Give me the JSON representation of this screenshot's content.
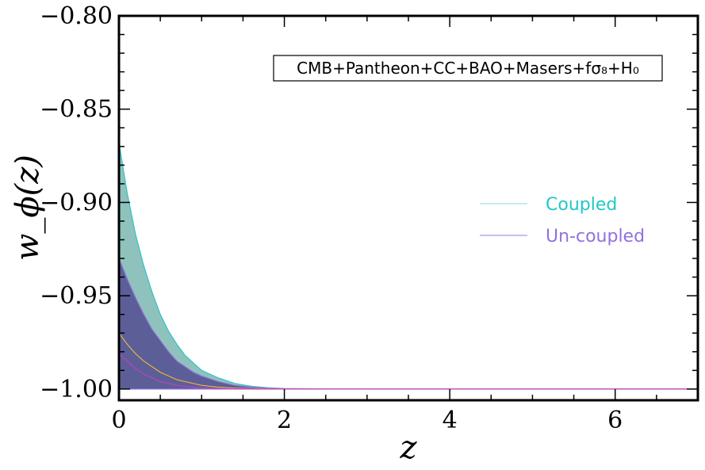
{
  "chart_data": {
    "type": "area",
    "xlabel": "z",
    "ylabel": "w_ϕ(z)",
    "xlim": [
      0,
      7
    ],
    "ylim": [
      -1.006,
      -0.8
    ],
    "x_ticks": [
      0,
      2,
      4,
      6
    ],
    "x_tick_labels": [
      "0",
      "2",
      "4",
      "6"
    ],
    "y_ticks": [
      -1.0,
      -0.95,
      -0.9,
      -0.85,
      -0.8
    ],
    "y_tick_labels": [
      "−1.00",
      "−0.95",
      "−0.90",
      "−0.85",
      "−0.80"
    ],
    "annotation": "CMB+Pantheon+CC+BAO+Masers+fσ₈+H₀",
    "legend_position": "center-right",
    "series": [
      {
        "name": "Coupled",
        "color": "#2ec4c4",
        "fill": "#5fa8a0",
        "x": [
          0,
          0.1,
          0.2,
          0.3,
          0.4,
          0.5,
          0.6,
          0.7,
          0.8,
          0.9,
          1.0,
          1.2,
          1.4,
          1.6,
          1.8,
          2.0,
          2.5,
          3.0,
          4.0,
          5.0,
          6.0,
          7.0
        ],
        "upper": [
          -0.868,
          -0.895,
          -0.917,
          -0.934,
          -0.948,
          -0.96,
          -0.969,
          -0.976,
          -0.982,
          -0.986,
          -0.99,
          -0.994,
          -0.997,
          -0.9985,
          -0.9993,
          -0.9997,
          -0.9999,
          -1.0,
          -1.0,
          -1.0,
          -1.0,
          -1.0
        ],
        "mean": [
          -0.97,
          -0.976,
          -0.981,
          -0.985,
          -0.988,
          -0.991,
          -0.993,
          -0.995,
          -0.996,
          -0.997,
          -0.998,
          -0.999,
          -0.9995,
          -0.9998,
          -0.9999,
          -1.0,
          -1.0,
          -1.0,
          -1.0,
          -1.0,
          -1.0,
          -1.0
        ],
        "lower": [
          -1.0,
          -1.0,
          -1.0,
          -1.0,
          -1.0,
          -1.0,
          -1.0,
          -1.0,
          -1.0,
          -1.0,
          -1.0,
          -1.0,
          -1.0,
          -1.0,
          -1.0,
          -1.0,
          -1.0,
          -1.0,
          -1.0,
          -1.0,
          -1.0,
          -1.0
        ]
      },
      {
        "name": "Un-coupled",
        "color": "#9370db",
        "fill": "#4b3c8c",
        "x": [
          0,
          0.1,
          0.2,
          0.3,
          0.4,
          0.5,
          0.6,
          0.7,
          0.8,
          0.9,
          1.0,
          1.2,
          1.4,
          1.6,
          1.8,
          2.0,
          2.5,
          3.0,
          4.0,
          5.0,
          6.0,
          7.0
        ],
        "upper": [
          -0.93,
          -0.941,
          -0.951,
          -0.96,
          -0.968,
          -0.974,
          -0.98,
          -0.985,
          -0.988,
          -0.991,
          -0.993,
          -0.996,
          -0.998,
          -0.999,
          -0.9995,
          -0.9998,
          -1.0,
          -1.0,
          -1.0,
          -1.0,
          -1.0,
          -1.0
        ],
        "mean": [
          -0.981,
          -0.985,
          -0.989,
          -0.992,
          -0.994,
          -0.996,
          -0.997,
          -0.998,
          -0.9985,
          -0.999,
          -0.9994,
          -0.9997,
          -0.9999,
          -1.0,
          -1.0,
          -1.0,
          -1.0,
          -1.0,
          -1.0,
          -1.0,
          -1.0,
          -1.0
        ],
        "lower": [
          -1.0,
          -1.0,
          -1.0,
          -1.0,
          -1.0,
          -1.0,
          -1.0,
          -1.0,
          -1.0,
          -1.0,
          -1.0,
          -1.0,
          -1.0,
          -1.0,
          -1.0,
          -1.0,
          -1.0,
          -1.0,
          -1.0,
          -1.0,
          -1.0,
          -1.0
        ]
      }
    ],
    "mean_line_colors": {
      "Coupled": "#e8b33a",
      "Un-coupled": "#c040c0"
    },
    "legend_line_colors": {
      "Coupled": "#a8ecec",
      "Un-coupled": "#bba6ec"
    },
    "legend_text_colors": {
      "Coupled": "#20c8c8",
      "Un-coupled": "#9370db"
    }
  }
}
